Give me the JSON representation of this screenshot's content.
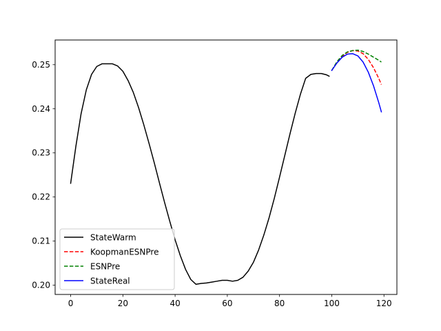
{
  "chart_data": {
    "type": "line",
    "title": "",
    "xlabel": "",
    "ylabel": "",
    "xlim": [
      -5.95,
      124.95
    ],
    "ylim": [
      0.1979,
      0.2556
    ],
    "x_ticks": [
      0,
      20,
      40,
      60,
      80,
      100,
      120
    ],
    "y_ticks": [
      0.2,
      0.21,
      0.22,
      0.23,
      0.24,
      0.25
    ],
    "x_tick_labels": [
      "0",
      "20",
      "40",
      "60",
      "80",
      "100",
      "120"
    ],
    "y_tick_labels": [
      "0.20",
      "0.21",
      "0.22",
      "0.23",
      "0.24",
      "0.25"
    ],
    "grid": false,
    "legend_position": "lower-left",
    "series": [
      {
        "name": "StateWarm",
        "color": "#000000",
        "dash": "solid",
        "x": [
          0,
          2,
          4,
          6,
          8,
          10,
          12,
          14,
          16,
          18,
          20,
          22,
          24,
          26,
          28,
          30,
          32,
          34,
          36,
          38,
          40,
          42,
          44,
          46,
          48,
          50,
          52,
          54,
          56,
          58,
          60,
          62,
          64,
          66,
          68,
          70,
          72,
          74,
          76,
          78,
          80,
          82,
          84,
          86,
          88,
          90,
          92,
          94,
          96,
          98,
          99
        ],
        "y": [
          0.2231,
          0.2315,
          0.2389,
          0.2443,
          0.2478,
          0.2496,
          0.2502,
          0.2502,
          0.2502,
          0.2497,
          0.2485,
          0.2464,
          0.2437,
          0.2403,
          0.2364,
          0.2322,
          0.2278,
          0.2232,
          0.2187,
          0.2144,
          0.2103,
          0.2067,
          0.2036,
          0.2013,
          0.2002,
          0.2004,
          0.2005,
          0.2007,
          0.2009,
          0.2011,
          0.2011,
          0.2009,
          0.2011,
          0.2018,
          0.2032,
          0.2052,
          0.208,
          0.2114,
          0.2153,
          0.2197,
          0.2245,
          0.2294,
          0.2343,
          0.239,
          0.2433,
          0.2469,
          0.2478,
          0.248,
          0.248,
          0.2477,
          0.2474
        ]
      },
      {
        "name": "KoopmanESNPre",
        "color": "#ff0000",
        "dash": "dashed",
        "x": [
          100,
          102,
          104,
          106,
          108,
          110,
          112,
          114,
          116,
          118,
          119
        ],
        "y": [
          0.2487,
          0.2505,
          0.2519,
          0.2528,
          0.2532,
          0.2531,
          0.2525,
          0.2512,
          0.2493,
          0.2469,
          0.2455
        ]
      },
      {
        "name": "ESNPre",
        "color": "#008000",
        "dash": "dashed",
        "x": [
          100,
          102,
          104,
          106,
          108,
          110,
          112,
          114,
          116,
          118,
          119
        ],
        "y": [
          0.2487,
          0.2507,
          0.2521,
          0.2529,
          0.2532,
          0.2533,
          0.253,
          0.2524,
          0.2517,
          0.251,
          0.2506
        ]
      },
      {
        "name": "StateReal",
        "color": "#0000ff",
        "dash": "solid",
        "x": [
          100,
          102,
          104,
          106,
          108,
          110,
          112,
          114,
          116,
          118,
          119
        ],
        "y": [
          0.2487,
          0.2504,
          0.2517,
          0.2524,
          0.2525,
          0.252,
          0.2506,
          0.2483,
          0.2452,
          0.2414,
          0.2393
        ]
      }
    ]
  }
}
